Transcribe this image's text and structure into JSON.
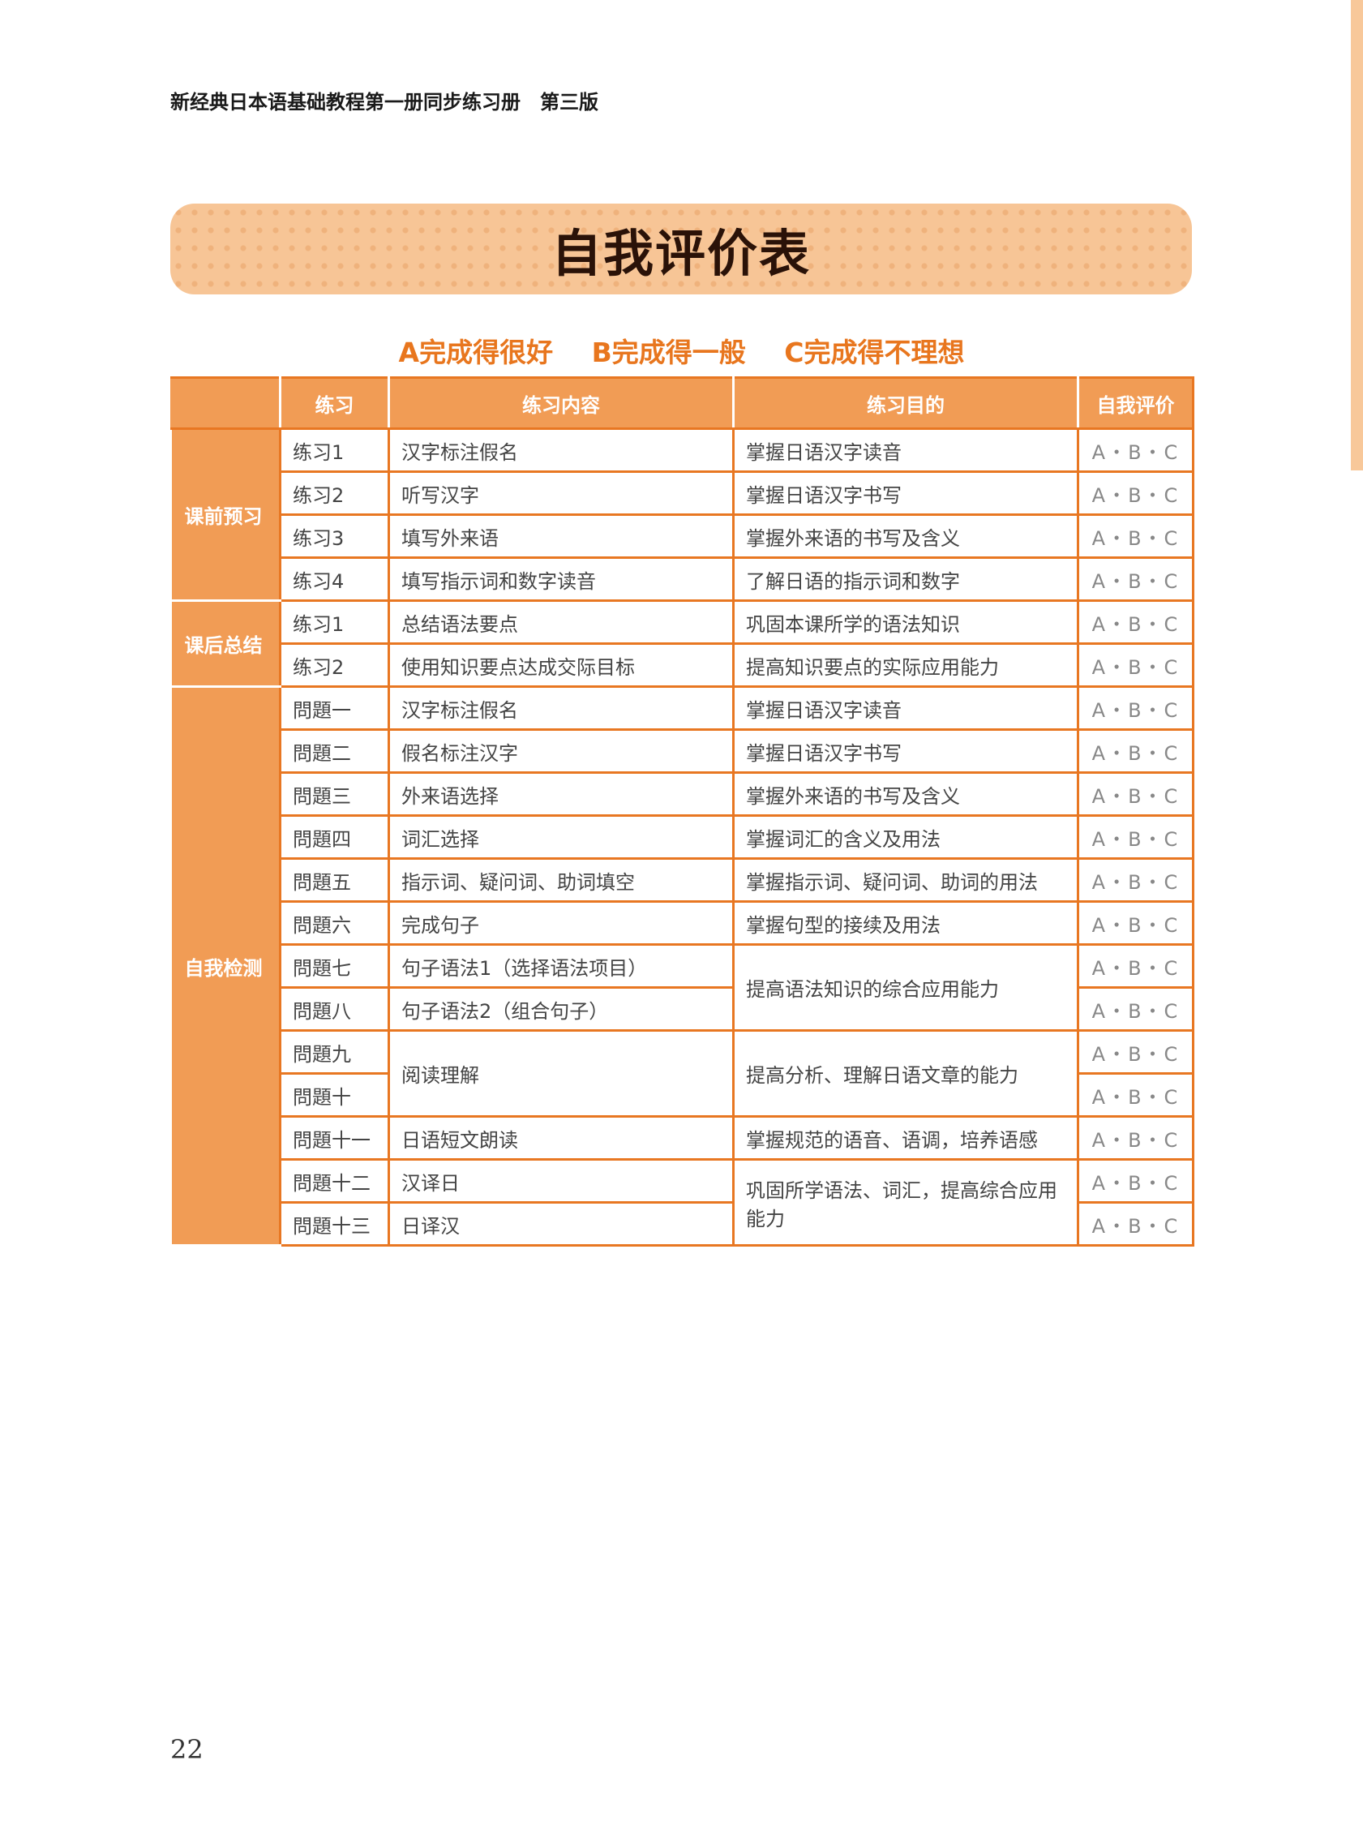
{
  "book_title": "新经典日本语基础教程第一册同步练习册　第三版",
  "page_title": "自我评价表",
  "legend": [
    "A完成得很好",
    "B完成得一般",
    "C完成得不理想"
  ],
  "table": {
    "headers": [
      "",
      "练习",
      "练习内容",
      "练习目的",
      "自我评价"
    ],
    "rating": "A・B・C",
    "groups": [
      {
        "label": "课前预习",
        "rows": [
          {
            "item": "练习1",
            "content": "汉字标注假名",
            "goal": "掌握日语汉字读音"
          },
          {
            "item": "练习2",
            "content": "听写汉字",
            "goal": "掌握日语汉字书写"
          },
          {
            "item": "练习3",
            "content": "填写外来语",
            "goal": "掌握外来语的书写及含义"
          },
          {
            "item": "练习4",
            "content": "填写指示词和数字读音",
            "goal": "了解日语的指示词和数字"
          }
        ]
      },
      {
        "label": "课后总结",
        "rows": [
          {
            "item": "练习1",
            "content": "总结语法要点",
            "goal": "巩固本课所学的语法知识"
          },
          {
            "item": "练习2",
            "content": "使用知识要点达成交际目标",
            "goal": "提高知识要点的实际应用能力"
          }
        ]
      },
      {
        "label": "自我检测",
        "rows": [
          {
            "item": "問題一",
            "content": "汉字标注假名",
            "goal": "掌握日语汉字读音"
          },
          {
            "item": "問題二",
            "content": "假名标注汉字",
            "goal": "掌握日语汉字书写"
          },
          {
            "item": "問題三",
            "content": "外来语选择",
            "goal": "掌握外来语的书写及含义"
          },
          {
            "item": "問題四",
            "content": "词汇选择",
            "goal": "掌握词汇的含义及用法"
          },
          {
            "item": "問題五",
            "content": "指示词、疑问词、助词填空",
            "goal": "掌握指示词、疑问词、助词的用法"
          },
          {
            "item": "問題六",
            "content": "完成句子",
            "goal": "掌握句型的接续及用法"
          },
          {
            "item": "問題七",
            "content": "句子语法1（选择语法项目）",
            "goal": "提高语法知识的综合应用能力",
            "goal_span": 2
          },
          {
            "item": "問題八",
            "content": "句子语法2（组合句子）"
          },
          {
            "item": "問題九",
            "content": "阅读理解",
            "content_span": 2,
            "goal": "提高分析、理解日语文章的能力",
            "goal_span": 2
          },
          {
            "item": "問題十"
          },
          {
            "item": "問題十一",
            "content": "日语短文朗读",
            "goal": "掌握规范的语音、语调，培养语感"
          },
          {
            "item": "問題十二",
            "content": "汉译日",
            "goal": "巩固所学语法、词汇，提高综合应用能力",
            "goal_span": 2
          },
          {
            "item": "問題十三",
            "content": "日译汉"
          }
        ]
      }
    ]
  },
  "page_number": "22",
  "colors": {
    "accent": "#e87722",
    "fill": "#f19c55",
    "band": "#f7c596"
  }
}
